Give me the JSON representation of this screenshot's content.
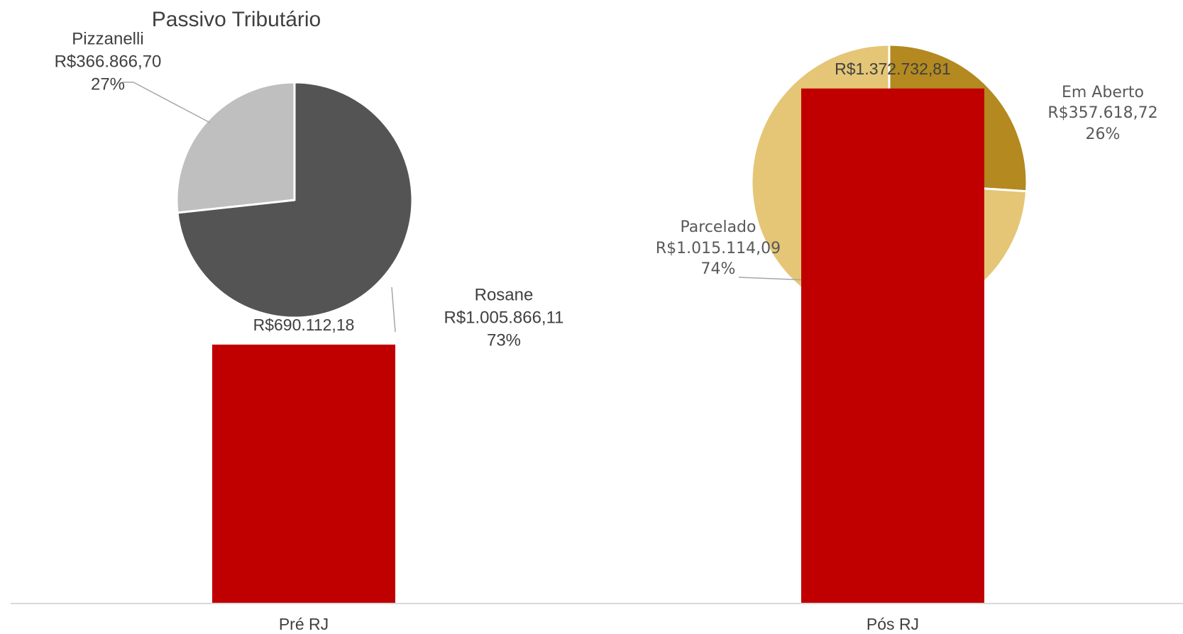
{
  "chart_data": [
    {
      "type": "pie",
      "title": "Passivo Tributário",
      "slices": [
        {
          "name": "Rosane",
          "value": 1005866.11,
          "value_label": "R$1.005.866,11",
          "percent_label": "73%",
          "color": "#545454"
        },
        {
          "name": "Pizzanelli",
          "value": 366866.7,
          "value_label": "R$366.866,70",
          "percent_label": "27%",
          "color": "#bfbfbf"
        }
      ],
      "start_angle": "12 o'clock",
      "direction": "clockwise",
      "data_labels": "outside with leader lines",
      "legend": "none"
    },
    {
      "type": "pie",
      "title": "",
      "slices": [
        {
          "name": "Em Aberto",
          "value": 357618.72,
          "value_label": "R$357.618,72",
          "percent_label": "26%",
          "color": "#b38920"
        },
        {
          "name": "Parcelado",
          "value": 1015114.09,
          "value_label": "R$1.015.114,09",
          "percent_label": "74%",
          "color": "#e4c676"
        }
      ],
      "start_angle": "12 o'clock",
      "direction": "clockwise",
      "data_labels": "outside with leader lines",
      "legend": "none"
    },
    {
      "type": "bar",
      "title": "",
      "categories": [
        "Pré RJ",
        "Pós RJ"
      ],
      "values": [
        690112.18,
        1372732.81
      ],
      "value_labels": [
        "R$690.112,18",
        "R$1.372.732,81"
      ],
      "color": "#c00000",
      "ylim": [
        0,
        1550000
      ],
      "y_axis_visible": false,
      "grid": false,
      "legend": "none"
    }
  ]
}
